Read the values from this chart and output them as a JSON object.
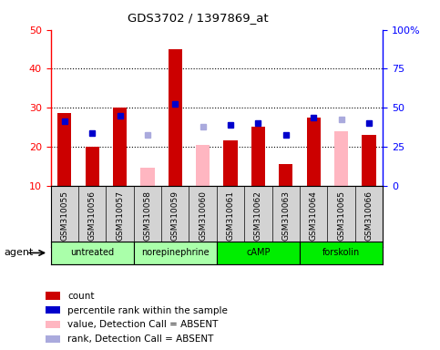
{
  "title": "GDS3702 / 1397869_at",
  "samples": [
    "GSM310055",
    "GSM310056",
    "GSM310057",
    "GSM310058",
    "GSM310059",
    "GSM310060",
    "GSM310061",
    "GSM310062",
    "GSM310063",
    "GSM310064",
    "GSM310065",
    "GSM310066"
  ],
  "red_bars": [
    28.5,
    20.0,
    30.0,
    null,
    45.0,
    null,
    21.5,
    25.0,
    15.5,
    27.5,
    null,
    23.0
  ],
  "pink_bars": [
    null,
    null,
    null,
    14.5,
    null,
    20.5,
    null,
    null,
    null,
    null,
    24.0,
    null
  ],
  "blue_squares": [
    26.5,
    23.5,
    28.0,
    null,
    31.0,
    null,
    25.5,
    26.0,
    23.0,
    27.5,
    null,
    26.0
  ],
  "light_blue_squares": [
    null,
    null,
    null,
    23.0,
    null,
    25.0,
    null,
    null,
    null,
    null,
    27.0,
    null
  ],
  "ylim_left": [
    10,
    50
  ],
  "ylim_right": [
    0,
    100
  ],
  "yticks_left": [
    10,
    20,
    30,
    40,
    50
  ],
  "yticks_right": [
    0,
    25,
    50,
    75,
    100
  ],
  "ytick_labels_right": [
    "0",
    "25",
    "50",
    "75",
    "100%"
  ],
  "bar_width": 0.5,
  "red_color": "#cc0000",
  "pink_color": "#ffb6c1",
  "blue_color": "#0000cc",
  "light_blue_color": "#aaaadd",
  "bg_color": "#ffffff",
  "sample_area_color": "#d3d3d3",
  "group_bounds": [
    {
      "start": 0,
      "end": 2,
      "label": "untreated",
      "color": "#aaffaa"
    },
    {
      "start": 3,
      "end": 5,
      "label": "norepinephrine",
      "color": "#aaffaa"
    },
    {
      "start": 6,
      "end": 8,
      "label": "cAMP",
      "color": "#00ee00"
    },
    {
      "start": 9,
      "end": 11,
      "label": "forskolin",
      "color": "#00ee00"
    }
  ],
  "legend_items": [
    {
      "color": "#cc0000",
      "label": "count"
    },
    {
      "color": "#0000cc",
      "label": "percentile rank within the sample"
    },
    {
      "color": "#ffb6c1",
      "label": "value, Detection Call = ABSENT"
    },
    {
      "color": "#aaaadd",
      "label": "rank, Detection Call = ABSENT"
    }
  ]
}
